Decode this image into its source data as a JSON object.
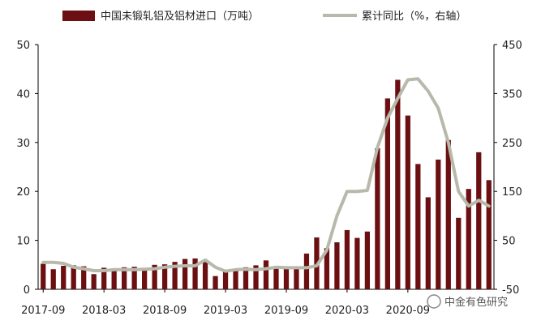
{
  "chart_data": {
    "type": "bar+line",
    "legend": {
      "bar_label": "中国未锻轧铝及铝材进口（万吨）",
      "line_label": "累计同比（%，右轴）",
      "placement": "top"
    },
    "y_left": {
      "ticks": [
        0,
        10,
        20,
        30,
        40,
        50
      ],
      "range": [
        0,
        50
      ]
    },
    "y_right": {
      "ticks": [
        -50,
        50,
        150,
        250,
        350,
        450
      ],
      "range": [
        -50,
        450
      ]
    },
    "x_tick_labels": [
      "2017-09",
      "2018-03",
      "2018-09",
      "2019-03",
      "2019-09",
      "2020-03",
      "2020-09"
    ],
    "categories": [
      "2017-09",
      "2017-10",
      "2017-11",
      "2017-12",
      "2018-01",
      "2018-02",
      "2018-03",
      "2018-04",
      "2018-05",
      "2018-06",
      "2018-07",
      "2018-08",
      "2018-09",
      "2018-10",
      "2018-11",
      "2018-12",
      "2019-01",
      "2019-02",
      "2019-03",
      "2019-04",
      "2019-05",
      "2019-06",
      "2019-07",
      "2019-08",
      "2019-09",
      "2019-10",
      "2019-11",
      "2019-12",
      "2020-01",
      "2020-02",
      "2020-03",
      "2020-04",
      "2020-05",
      "2020-06",
      "2020-07",
      "2020-08",
      "2020-09",
      "2020-10",
      "2020-11",
      "2020-12",
      "2021-01",
      "2021-02",
      "2021-03",
      "2021-04",
      "2021-05"
    ],
    "series": [
      {
        "name": "中国未锻轧铝及铝材进口（万吨）",
        "kind": "bar",
        "axis": "left",
        "values": [
          5.2,
          4.1,
          4.8,
          4.9,
          4.7,
          3.1,
          4.4,
          4.2,
          4.5,
          4.6,
          4.3,
          5.0,
          5.1,
          5.6,
          6.2,
          6.3,
          5.7,
          2.7,
          3.6,
          4.1,
          4.5,
          4.9,
          5.9,
          4.6,
          4.5,
          4.7,
          7.3,
          10.6,
          8.4,
          9.6,
          12.1,
          10.5,
          11.8,
          28.8,
          39.0,
          42.8,
          35.5,
          25.6,
          18.8,
          26.5,
          30.5,
          14.6,
          20.5,
          28.0,
          22.3
        ]
      },
      {
        "name": "累计同比（%，右轴）",
        "kind": "line",
        "axis": "right",
        "values": [
          5,
          5,
          3,
          -5,
          -8,
          -12,
          -12,
          -10,
          -10,
          -10,
          -9,
          -8,
          -5,
          -3,
          -2,
          -2,
          10,
          -5,
          -13,
          -10,
          -9,
          -10,
          -8,
          -5,
          -6,
          -6,
          -6,
          -2,
          30,
          100,
          150,
          150,
          152,
          240,
          300,
          340,
          378,
          380,
          355,
          320,
          250,
          150,
          120,
          132,
          120
        ]
      }
    ],
    "colors": {
      "bar": "#6b0f12",
      "line": "#b7b9aa",
      "axis": "#000000"
    },
    "grid": false
  },
  "watermark": {
    "text": "中金有色研究"
  }
}
